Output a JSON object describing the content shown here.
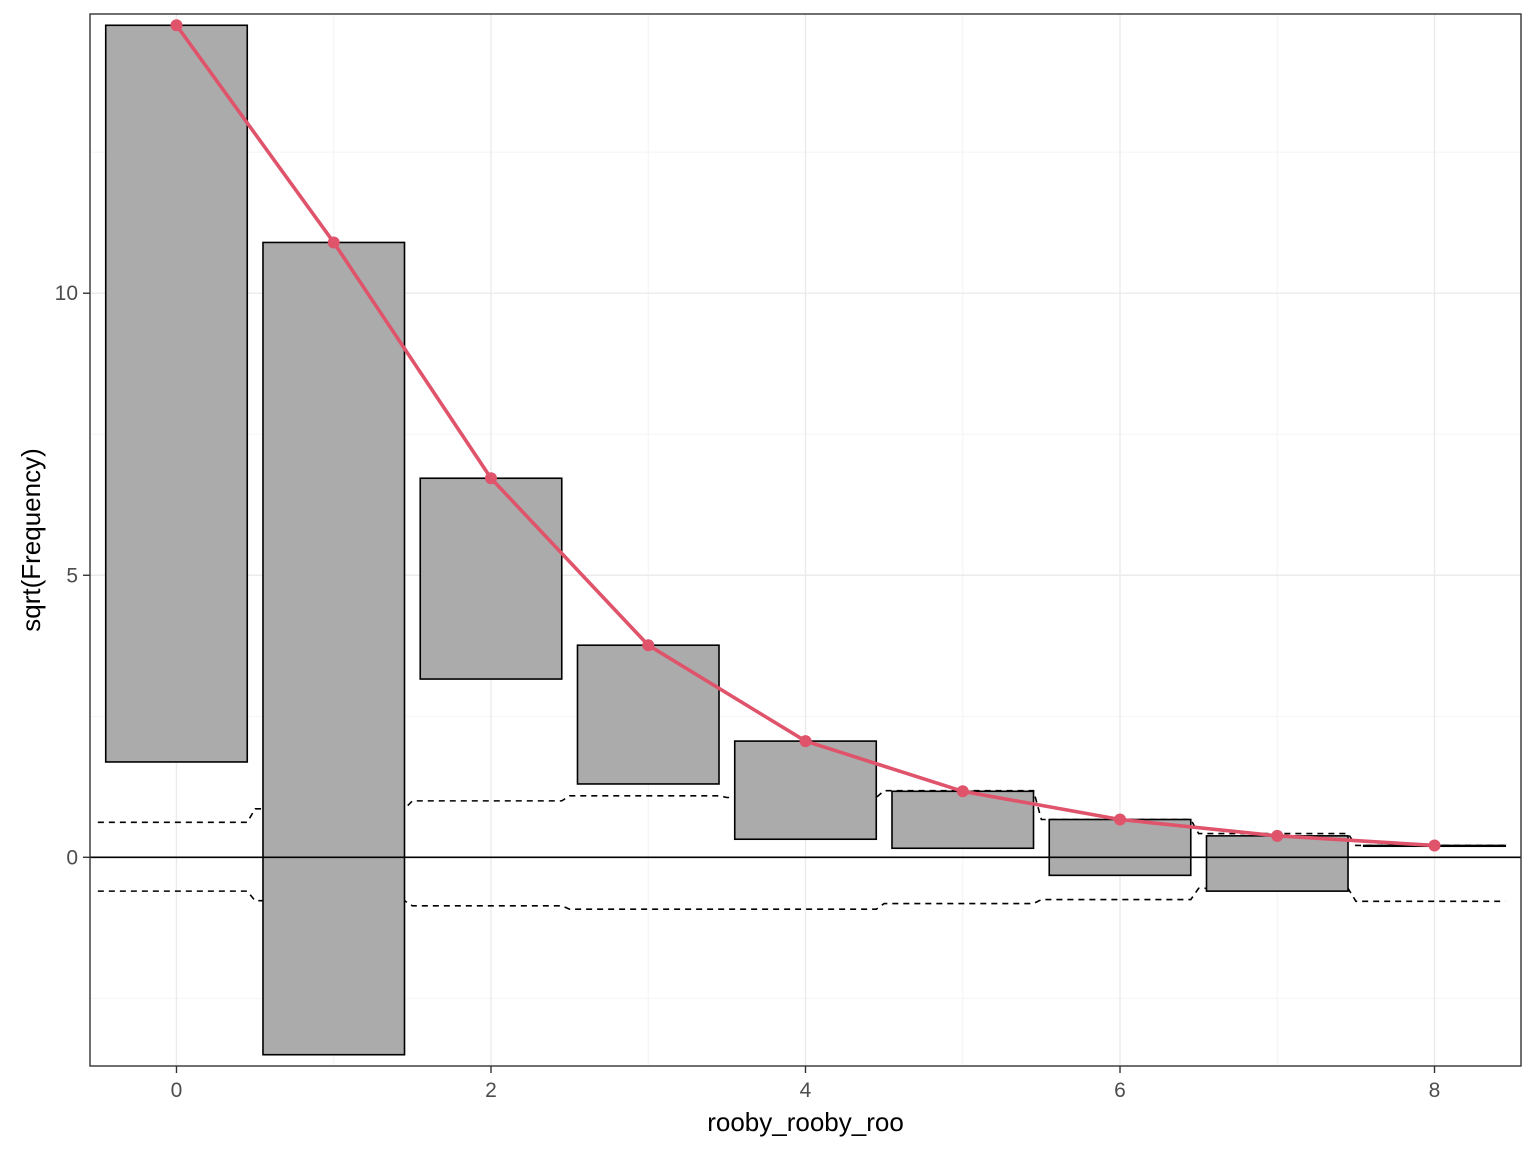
{
  "chart_data": {
    "type": "bar",
    "subtype": "hanging-rootogram",
    "xlabel": "rooby_rooby_roo",
    "ylabel": "sqrt(Frequency)",
    "xlim": [
      -0.55,
      8.55
    ],
    "ylim": [
      -3.7,
      14.95
    ],
    "x_ticks": [
      0,
      2,
      4,
      6,
      8
    ],
    "y_ticks": [
      0,
      5,
      10
    ],
    "grid": true,
    "x": [
      0,
      1,
      2,
      3,
      4,
      5,
      6,
      7,
      8
    ],
    "expected_sqrt": [
      14.75,
      10.9,
      6.72,
      3.76,
      2.06,
      1.17,
      0.67,
      0.38,
      0.21
    ],
    "bar_bottom": [
      1.69,
      -3.5,
      3.16,
      1.3,
      0.32,
      0.16,
      -0.32,
      -0.6,
      0.21
    ],
    "band_upper": [
      0.62,
      0.86,
      1.0,
      1.09,
      1.06,
      1.18,
      0.67,
      0.42,
      0.21
    ],
    "band_lower": [
      -0.6,
      -0.77,
      -0.86,
      -0.92,
      -0.92,
      -0.82,
      -0.75,
      -0.55,
      -0.78
    ],
    "colors": {
      "bar_fill": "#ababab",
      "fit_line": "#df536b"
    }
  }
}
